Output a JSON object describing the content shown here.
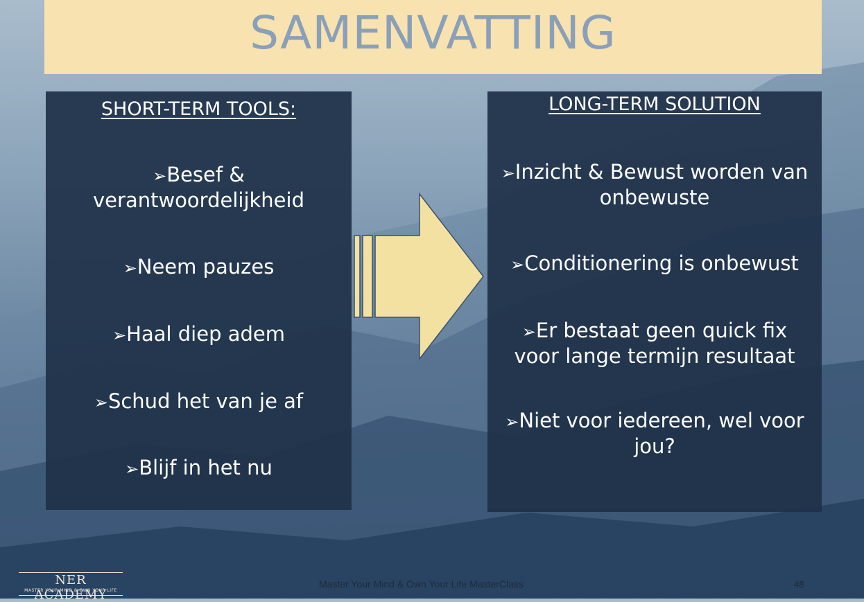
{
  "slide": {
    "title": "SAMENVATTING",
    "page_number": "48",
    "footer": "Master Your Mind & Own Your Life MasterClass"
  },
  "left_panel": {
    "heading": "SHORT-TERM TOOLS:",
    "bullets": [
      "Besef & verantwoordelijkheid",
      "Neem pauzes",
      "Haal diep adem",
      "Schud het van je af",
      "Blijf in het nu"
    ]
  },
  "right_panel": {
    "heading": "LONG-TERM SOLUTION",
    "bullets": [
      "Inzicht & Bewust worden van onbewuste",
      "Conditionering is onbewust",
      "Er bestaat geen quick fix voor lange termijn resultaat",
      "Niet voor iedereen, wel voor jou?"
    ]
  },
  "logo": {
    "main": "NER ACADEMY",
    "tagline": "MASTER YOUR MIND & OWN YOUR LIFE"
  },
  "colors": {
    "title_band": "#f7e2b0",
    "title_text": "#8aa0b8",
    "panel": "#1f3149",
    "arrow_fill": "#f3e1a2",
    "arrow_stroke": "#3b4f6b"
  },
  "icons": {
    "bullet": "arrowhead-bullet-icon",
    "transition": "striped-right-arrow-icon"
  }
}
